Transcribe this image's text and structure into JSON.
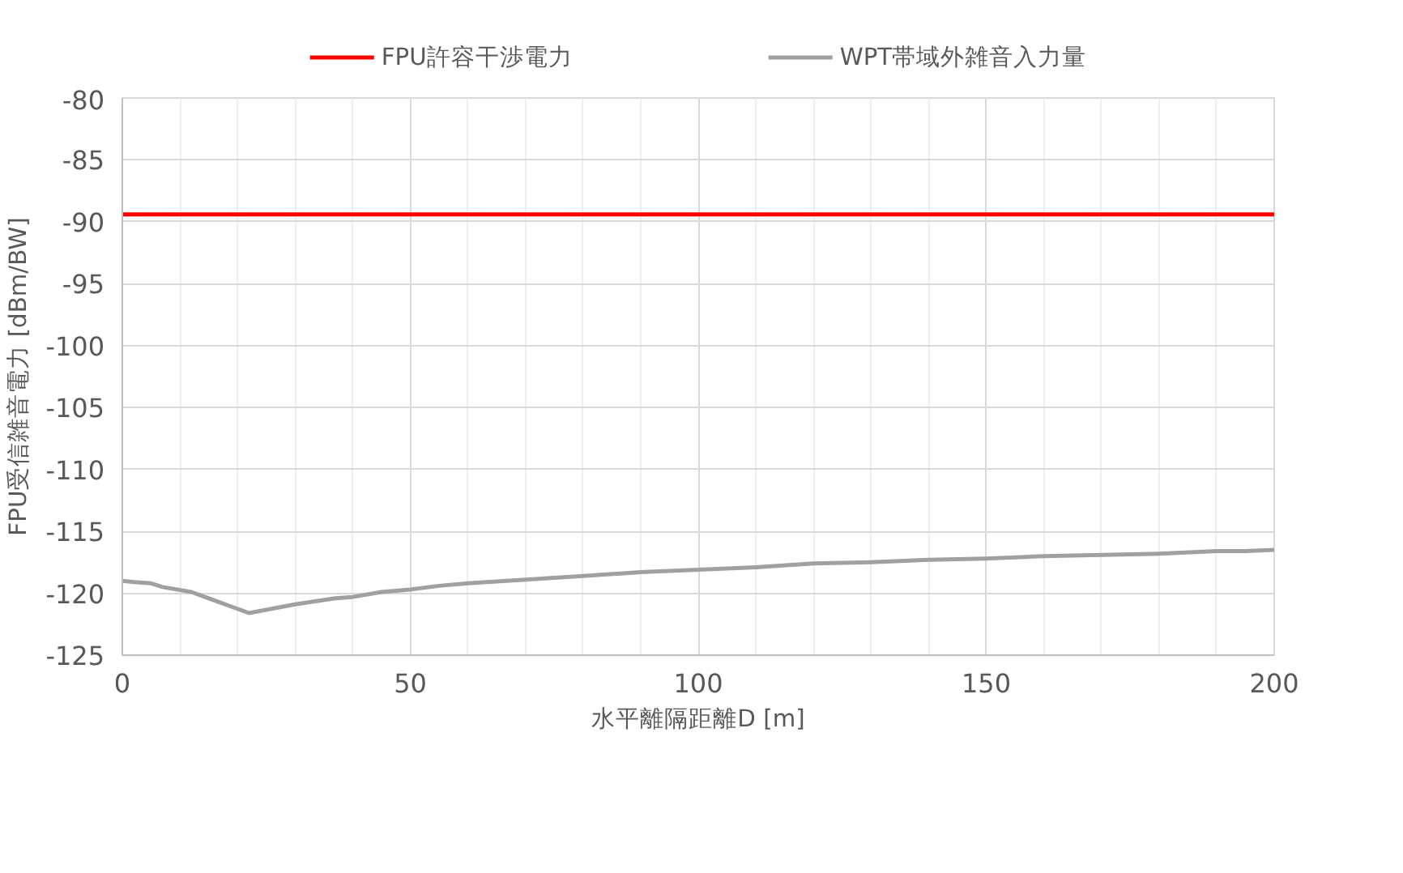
{
  "chart_data": {
    "type": "line",
    "xlabel": "水平離隔距離D [m]",
    "ylabel": "FPU受信雑音電力 [dBm/BW]",
    "xlim": [
      0,
      200
    ],
    "xticks": [
      0,
      50,
      100,
      150,
      200
    ],
    "ylim": [
      -125,
      -80
    ],
    "yticks": [
      -125,
      -120,
      -115,
      -110,
      -105,
      -100,
      -95,
      -90,
      -85,
      -80
    ],
    "grid": true,
    "legend": "top",
    "marker": "none",
    "line_style": "solid",
    "series": [
      {
        "name": "FPU許容干渉電力",
        "color": "#ff0000",
        "x": [
          0,
          200
        ],
        "values": [
          -89.4,
          -89.4
        ]
      },
      {
        "name": "WPT帯域外雑音入力量",
        "color": "#a0a0a0",
        "x": [
          0,
          2,
          5,
          7,
          12,
          22,
          30,
          37,
          40,
          45,
          50,
          55,
          60,
          70,
          80,
          90,
          100,
          110,
          120,
          130,
          140,
          150,
          160,
          170,
          180,
          190,
          195,
          200
        ],
        "values": [
          -119.0,
          -119.1,
          -119.2,
          -119.5,
          -119.9,
          -121.6,
          -120.9,
          -120.4,
          -120.3,
          -119.9,
          -119.7,
          -119.4,
          -119.2,
          -118.9,
          -118.6,
          -118.3,
          -118.1,
          -117.9,
          -117.6,
          -117.5,
          -117.3,
          -117.2,
          -117.0,
          -116.9,
          -116.8,
          -116.6,
          -116.6,
          -116.5
        ]
      }
    ]
  }
}
